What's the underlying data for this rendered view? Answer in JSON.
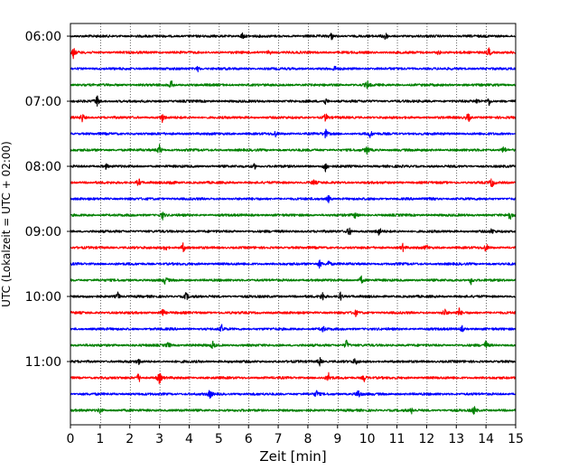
{
  "chart_data": {
    "type": "line",
    "title": "",
    "xlabel": "Zeit  [min]",
    "ylabel": "UTC (Lokalzeit = UTC + 02:00)",
    "xlim": [
      0,
      15
    ],
    "x_ticks": [
      0,
      1,
      2,
      3,
      4,
      5,
      6,
      7,
      8,
      9,
      10,
      11,
      12,
      13,
      14,
      15
    ],
    "y_tick_labels": [
      "06:00",
      "07:00",
      "08:00",
      "09:00",
      "10:00",
      "11:00"
    ],
    "grid": "vertical dotted",
    "trace_interval_min": 15,
    "trace_colors": [
      "#000000",
      "#ff0000",
      "#0000ff",
      "#008000"
    ],
    "traces": [
      {
        "start": "06:00",
        "color": "#000000",
        "spikes": [
          [
            5.8,
            4
          ],
          [
            8.8,
            4
          ],
          [
            10.6,
            6
          ]
        ]
      },
      {
        "start": "06:15",
        "color": "#ff0000",
        "spikes": [
          [
            0.1,
            6
          ],
          [
            6.7,
            3
          ],
          [
            12.4,
            3
          ],
          [
            14.1,
            6
          ]
        ]
      },
      {
        "start": "06:30",
        "color": "#0000ff",
        "spikes": [
          [
            4.3,
            3
          ],
          [
            8.9,
            3
          ]
        ]
      },
      {
        "start": "06:45",
        "color": "#008000",
        "spikes": [
          [
            3.4,
            5
          ],
          [
            10.0,
            5
          ]
        ]
      },
      {
        "start": "07:00",
        "color": "#000000",
        "spikes": [
          [
            0.9,
            7
          ],
          [
            8.6,
            4
          ],
          [
            13.7,
            3
          ],
          [
            14.1,
            5
          ]
        ]
      },
      {
        "start": "07:15",
        "color": "#ff0000",
        "spikes": [
          [
            0.4,
            5
          ],
          [
            3.1,
            5
          ],
          [
            8.6,
            5
          ],
          [
            13.4,
            6
          ]
        ]
      },
      {
        "start": "07:30",
        "color": "#0000ff",
        "spikes": [
          [
            6.9,
            3
          ],
          [
            8.6,
            5
          ],
          [
            10.1,
            4
          ]
        ]
      },
      {
        "start": "07:45",
        "color": "#008000",
        "spikes": [
          [
            3.0,
            6
          ],
          [
            10.0,
            5
          ],
          [
            14.6,
            5
          ]
        ]
      },
      {
        "start": "08:00",
        "color": "#000000",
        "spikes": [
          [
            1.2,
            3
          ],
          [
            6.2,
            3
          ],
          [
            8.6,
            7
          ]
        ]
      },
      {
        "start": "08:15",
        "color": "#ff0000",
        "spikes": [
          [
            2.3,
            5
          ],
          [
            3.4,
            4
          ],
          [
            8.2,
            3
          ],
          [
            14.2,
            6
          ]
        ]
      },
      {
        "start": "08:30",
        "color": "#0000ff",
        "spikes": [
          [
            8.7,
            4
          ],
          [
            12.2,
            3
          ]
        ]
      },
      {
        "start": "08:45",
        "color": "#008000",
        "spikes": [
          [
            3.1,
            5
          ],
          [
            9.6,
            4
          ],
          [
            14.8,
            6
          ]
        ]
      },
      {
        "start": "09:00",
        "color": "#000000",
        "spikes": [
          [
            9.4,
            6
          ],
          [
            10.4,
            5
          ],
          [
            14.2,
            3
          ]
        ]
      },
      {
        "start": "09:15",
        "color": "#ff0000",
        "spikes": [
          [
            3.2,
            4
          ],
          [
            3.8,
            5
          ],
          [
            11.2,
            4
          ],
          [
            12.0,
            3
          ],
          [
            14.0,
            5
          ]
        ]
      },
      {
        "start": "09:30",
        "color": "#0000ff",
        "spikes": [
          [
            8.4,
            5
          ],
          [
            8.7,
            4
          ]
        ]
      },
      {
        "start": "09:45",
        "color": "#008000",
        "spikes": [
          [
            3.2,
            5
          ],
          [
            9.8,
            5
          ],
          [
            13.5,
            5
          ]
        ]
      },
      {
        "start": "10:00",
        "color": "#000000",
        "spikes": [
          [
            1.6,
            5
          ],
          [
            3.9,
            5
          ],
          [
            8.5,
            5
          ],
          [
            9.1,
            5
          ]
        ]
      },
      {
        "start": "10:15",
        "color": "#ff0000",
        "spikes": [
          [
            3.1,
            6
          ],
          [
            9.6,
            4
          ],
          [
            12.6,
            5
          ],
          [
            13.1,
            5
          ]
        ]
      },
      {
        "start": "10:30",
        "color": "#0000ff",
        "spikes": [
          [
            5.1,
            4
          ],
          [
            8.5,
            4
          ],
          [
            13.2,
            3
          ]
        ]
      },
      {
        "start": "10:45",
        "color": "#008000",
        "spikes": [
          [
            3.3,
            4
          ],
          [
            4.8,
            4
          ],
          [
            9.3,
            6
          ],
          [
            14.0,
            5
          ]
        ]
      },
      {
        "start": "11:00",
        "color": "#000000",
        "spikes": [
          [
            2.3,
            3
          ],
          [
            8.4,
            5
          ],
          [
            9.6,
            4
          ]
        ]
      },
      {
        "start": "11:15",
        "color": "#ff0000",
        "spikes": [
          [
            2.3,
            6
          ],
          [
            3.0,
            7
          ],
          [
            8.7,
            5
          ],
          [
            9.9,
            4
          ]
        ]
      },
      {
        "start": "11:30",
        "color": "#0000ff",
        "spikes": [
          [
            4.7,
            5
          ],
          [
            8.3,
            4
          ],
          [
            9.7,
            6
          ]
        ]
      },
      {
        "start": "11:45",
        "color": "#008000",
        "spikes": [
          [
            1.0,
            4
          ],
          [
            11.5,
            3
          ],
          [
            13.6,
            5
          ]
        ]
      }
    ]
  }
}
